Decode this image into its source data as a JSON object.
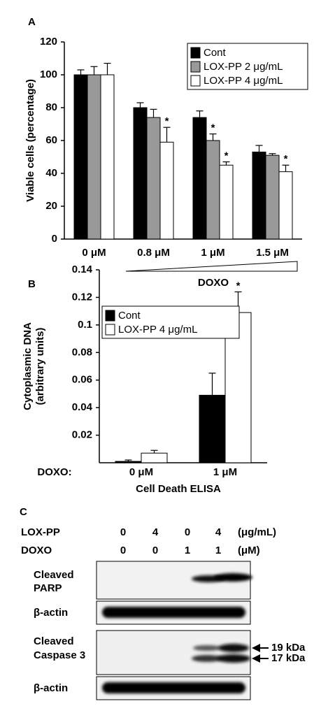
{
  "chart_data": [
    {
      "type": "bar",
      "panel_label": "A",
      "ylabel": "Viable cells (percentage)",
      "xlabel": "DOXO",
      "categories": [
        "0 μM",
        "0.8 μM",
        "1 μM",
        "1.5 μM"
      ],
      "series": [
        {
          "name": "Cont",
          "color": "#000000",
          "values": [
            100,
            80,
            74,
            53
          ],
          "errors": [
            3,
            3,
            4,
            4
          ],
          "markers": [
            null,
            null,
            null,
            null
          ]
        },
        {
          "name": "LOX-PP 2 μg/mL",
          "color": "#999999",
          "values": [
            100,
            74,
            60,
            51
          ],
          "errors": [
            5,
            5,
            4,
            1
          ],
          "markers": [
            null,
            null,
            "*",
            null
          ]
        },
        {
          "name": "LOX-PP 4 μg/mL",
          "color": "#ffffff",
          "values": [
            100,
            59,
            45,
            41
          ],
          "errors": [
            7,
            9,
            2,
            4
          ],
          "markers": [
            null,
            "*",
            "*",
            "*"
          ]
        }
      ],
      "ylim": [
        0,
        120
      ],
      "yticks": [
        0,
        20,
        40,
        60,
        80,
        100,
        120
      ],
      "legend": "upper right"
    },
    {
      "type": "bar",
      "panel_label": "B",
      "ylabel": [
        "Cytoplasmic DNA",
        "(arbitrary units)"
      ],
      "xlabel": "Cell Death ELISA",
      "category_axis_label": "DOXO:",
      "categories": [
        "0 μM",
        "1 μM"
      ],
      "series": [
        {
          "name": "Cont",
          "color": "#000000",
          "values": [
            0.001,
            0.049
          ],
          "errors": [
            0.001,
            0.016
          ],
          "markers": [
            null,
            null
          ]
        },
        {
          "name": "LOX-PP 4 μg/mL",
          "color": "#ffffff",
          "values": [
            0.007,
            0.109
          ],
          "errors": [
            0.002,
            0.015
          ],
          "markers": [
            null,
            "*"
          ]
        }
      ],
      "ylim": [
        0,
        0.14
      ],
      "yticks": [
        0.02,
        0.04,
        0.06,
        0.08,
        0.1,
        0.12,
        0.14
      ],
      "legend": "upper left"
    }
  ],
  "panel_c": {
    "label": "C",
    "header_rows": [
      {
        "name": "LOX-PP",
        "values": [
          0,
          4,
          0,
          4
        ],
        "unit": "(μg/mL)"
      },
      {
        "name": "DOXO",
        "values": [
          0,
          0,
          1,
          1
        ],
        "unit": "(μM)"
      }
    ],
    "blots": [
      {
        "label": [
          "Cleaved",
          "PARP"
        ]
      },
      {
        "label": [
          "β-actin"
        ]
      },
      {
        "label": [
          "Cleaved",
          "Caspase 3"
        ]
      },
      {
        "label": [
          "β-actin"
        ]
      }
    ],
    "size_markers": [
      "19 kDa",
      "17 kDa"
    ]
  }
}
